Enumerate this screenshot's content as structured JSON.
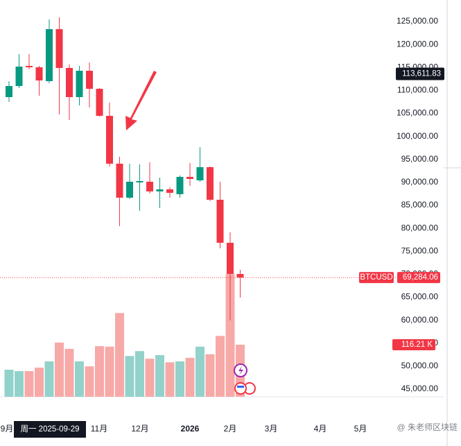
{
  "chart_data": {
    "type": "candlestick",
    "symbol": "BTCUSD",
    "open": [
      108550,
      110960,
      115340,
      115040,
      112020,
      123340,
      114890,
      108550,
      114280,
      110360,
      104470,
      94060,
      86660,
      89980,
      90130,
      88020,
      88470,
      87420,
      91190,
      90430,
      93300,
      86210,
      76850,
      70060
    ],
    "high": [
      112020,
      117900,
      117900,
      115340,
      125450,
      125910,
      115640,
      115340,
      116090,
      110510,
      107340,
      95570,
      94060,
      93910,
      94360,
      91040,
      88930,
      91490,
      94210,
      97680,
      93450,
      90130,
      79120,
      70970
    ],
    "low": [
      107490,
      110510,
      114580,
      108850,
      111570,
      104770,
      103570,
      106740,
      106280,
      104320,
      93450,
      80470,
      86360,
      83790,
      87570,
      84400,
      86660,
      86660,
      89230,
      90130,
      85910,
      75640,
      59940,
      64920
    ],
    "close": [
      110960,
      115190,
      115040,
      112170,
      123340,
      114890,
      108550,
      114280,
      110360,
      104470,
      94060,
      86660,
      90130,
      90280,
      88020,
      88470,
      87720,
      91190,
      90740,
      93300,
      86210,
      76850,
      70060,
      69284.06
    ],
    "volume": [
      60.4,
      57.3,
      57.3,
      65,
      79,
      121,
      107,
      79,
      68,
      113,
      112,
      187,
      91,
      102,
      85,
      93,
      77,
      79,
      87,
      112,
      95,
      136,
      274,
      116.21
    ],
    "volume_last_label": "116.21 K",
    "up_color": "#089981",
    "down_color": "#f23645",
    "up_volume_color": "#92d2ca",
    "down_volume_color": "#f7a9a7",
    "last_price": {
      "value": 69284.06,
      "label": "69,284.06"
    },
    "price_marker": {
      "value": 113611.83,
      "label": "113,611.83"
    },
    "ylim": [
      43340,
      129680
    ],
    "yticks": [
      {
        "value": 45000,
        "label": "45,000.00"
      },
      {
        "value": 50000,
        "label": "50,000.00"
      },
      {
        "value": 55000,
        "label": "55,000.00"
      },
      {
        "value": 60000,
        "label": "60,000.00"
      },
      {
        "value": 65000,
        "label": "65,000.00"
      },
      {
        "value": 70000,
        "label": "70,000.00"
      },
      {
        "value": 75000,
        "label": "75,000.00"
      },
      {
        "value": 80000,
        "label": "80,000.00"
      },
      {
        "value": 85000,
        "label": "85,000.00"
      },
      {
        "value": 90000,
        "label": "90,000.00"
      },
      {
        "value": 95000,
        "label": "95,000.00"
      },
      {
        "value": 100000,
        "label": "100,000.00"
      },
      {
        "value": 105000,
        "label": "105,000.00"
      },
      {
        "value": 110000,
        "label": "110,000.00"
      },
      {
        "value": 115000,
        "label": "115,000.00"
      },
      {
        "value": 120000,
        "label": "120,000.00"
      },
      {
        "value": 125000,
        "label": "125,000.00"
      }
    ],
    "x_labels": [
      "9月",
      "11月",
      "12月",
      "2026",
      "2月",
      "3月",
      "4月",
      "5月"
    ],
    "crosshair_date": "周一 2025-09-29",
    "watermark": "@ 朱老师区块链"
  }
}
